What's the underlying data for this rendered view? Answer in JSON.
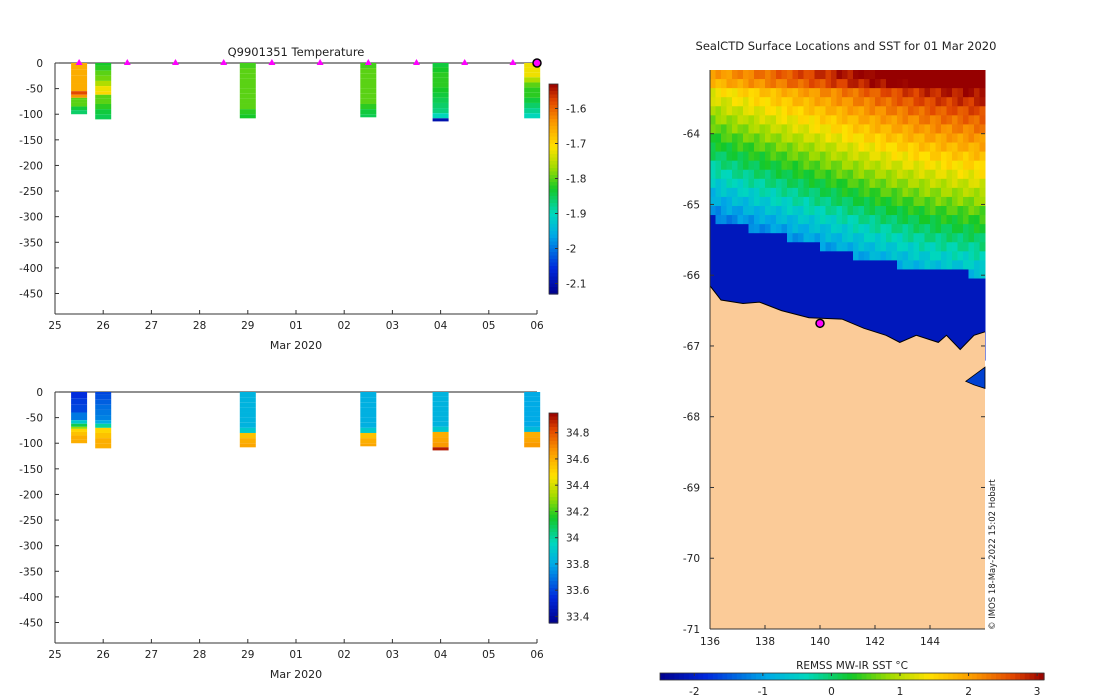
{
  "chart_data": [
    {
      "type": "heatmap",
      "title": "Q9901351  Temperature",
      "xlabel": "Mar 2020",
      "ylabel": "",
      "x_tick_labels": [
        "25",
        "26",
        "27",
        "28",
        "29",
        "01",
        "02",
        "03",
        "04",
        "05",
        "06"
      ],
      "y_ticks": [
        0,
        -50,
        -100,
        -150,
        -200,
        -250,
        -300,
        -350,
        -400,
        -450
      ],
      "ylim": [
        -490,
        0
      ],
      "colorbar": {
        "ticks": [
          -1.6,
          -1.7,
          -1.8,
          -1.9,
          -2,
          -2.1
        ],
        "range": [
          -2.13,
          -1.53
        ]
      },
      "profile_markers_days": [
        0.5,
        1.5,
        2.5,
        3.5,
        4.5,
        5.5,
        6.5,
        7.5,
        8.5,
        9.5
      ],
      "surface_marker_day": 10,
      "profiles": [
        {
          "day": 0.5,
          "depths": [
            -12,
            -25,
            -40,
            -55,
            -62,
            -68,
            -72,
            -78,
            -85,
            -92,
            -100
          ],
          "values": [
            -1.66,
            -1.66,
            -1.66,
            -1.66,
            -1.58,
            -1.64,
            -1.8,
            -1.8,
            -1.8,
            -1.84,
            -1.86
          ]
        },
        {
          "day": 1.0,
          "depths": [
            -5,
            -15,
            -25,
            -35,
            -45,
            -55,
            -62,
            -70,
            -80,
            -90,
            -100,
            -110
          ],
          "values": [
            -1.83,
            -1.82,
            -1.8,
            -1.79,
            -1.76,
            -1.72,
            -1.7,
            -1.8,
            -1.8,
            -1.82,
            -1.84,
            -1.85
          ]
        },
        {
          "day": 4.0,
          "depths": [
            -10,
            -20,
            -30,
            -40,
            -50,
            -60,
            -70,
            -80,
            -90,
            -100,
            -108
          ],
          "values": [
            -1.81,
            -1.8,
            -1.8,
            -1.8,
            -1.8,
            -1.8,
            -1.8,
            -1.8,
            -1.8,
            -1.82,
            -1.83
          ]
        },
        {
          "day": 6.5,
          "depths": [
            -10,
            -20,
            -30,
            -40,
            -50,
            -60,
            -70,
            -80,
            -90,
            -100,
            -106
          ],
          "values": [
            -1.81,
            -1.8,
            -1.8,
            -1.8,
            -1.8,
            -1.8,
            -1.8,
            -1.8,
            -1.82,
            -1.84,
            -1.85
          ]
        },
        {
          "day": 8.0,
          "depths": [
            -8,
            -18,
            -28,
            -38,
            -48,
            -58,
            -68,
            -78,
            -88,
            -98,
            -108,
            -114
          ],
          "values": [
            -1.84,
            -1.83,
            -1.82,
            -1.82,
            -1.82,
            -1.83,
            -1.84,
            -1.85,
            -1.86,
            -1.87,
            -1.9,
            -2.1
          ]
        },
        {
          "day": 9.9,
          "depths": [
            -8,
            -18,
            -28,
            -38,
            -48,
            -58,
            -68,
            -78,
            -88,
            -98,
            -108
          ],
          "values": [
            -1.72,
            -1.72,
            -1.72,
            -1.76,
            -1.8,
            -1.82,
            -1.82,
            -1.84,
            -1.86,
            -1.88,
            -1.9
          ]
        }
      ]
    },
    {
      "type": "heatmap",
      "title": "",
      "xlabel": "Mar 2020",
      "ylabel": "",
      "x_tick_labels": [
        "25",
        "26",
        "27",
        "28",
        "29",
        "01",
        "02",
        "03",
        "04",
        "05",
        "06"
      ],
      "y_ticks": [
        0,
        -50,
        -100,
        -150,
        -200,
        -250,
        -300,
        -350,
        -400,
        -450
      ],
      "ylim": [
        -490,
        0
      ],
      "colorbar": {
        "ticks": [
          34.8,
          34.6,
          34.4,
          34.2,
          34,
          33.8,
          33.6,
          33.4
        ],
        "range": [
          33.35,
          34.95
        ]
      },
      "profiles": [
        {
          "day": 0.5,
          "depths": [
            -12,
            -25,
            -40,
            -55,
            -62,
            -68,
            -72,
            -78,
            -85,
            -92,
            -100
          ],
          "values": [
            33.55,
            33.58,
            33.6,
            33.7,
            33.9,
            34.1,
            34.3,
            34.5,
            34.55,
            34.6,
            34.6
          ]
        },
        {
          "day": 1.0,
          "depths": [
            -5,
            -15,
            -25,
            -35,
            -45,
            -55,
            -62,
            -70,
            -80,
            -90,
            -100,
            -110
          ],
          "values": [
            33.6,
            33.62,
            33.65,
            33.68,
            33.7,
            33.72,
            33.8,
            34.0,
            34.5,
            34.55,
            34.6,
            34.6
          ]
        },
        {
          "day": 4.0,
          "depths": [
            -10,
            -20,
            -30,
            -40,
            -50,
            -60,
            -70,
            -80,
            -90,
            -100,
            -108
          ],
          "values": [
            33.83,
            33.83,
            33.83,
            33.83,
            33.83,
            33.83,
            33.83,
            33.9,
            34.55,
            34.6,
            34.62
          ]
        },
        {
          "day": 6.5,
          "depths": [
            -10,
            -20,
            -30,
            -40,
            -50,
            -60,
            -70,
            -80,
            -90,
            -100,
            -106
          ],
          "values": [
            33.82,
            33.82,
            33.82,
            33.82,
            33.82,
            33.82,
            33.82,
            33.9,
            34.55,
            34.6,
            34.62
          ]
        },
        {
          "day": 8.0,
          "depths": [
            -8,
            -18,
            -28,
            -38,
            -48,
            -58,
            -68,
            -78,
            -88,
            -98,
            -108,
            -114
          ],
          "values": [
            33.83,
            33.83,
            33.83,
            33.83,
            33.83,
            33.83,
            33.83,
            33.9,
            34.6,
            34.62,
            34.65,
            34.9
          ]
        },
        {
          "day": 9.9,
          "depths": [
            -8,
            -18,
            -28,
            -38,
            -48,
            -58,
            -68,
            -78,
            -88,
            -98,
            -108
          ],
          "values": [
            33.8,
            33.8,
            33.8,
            33.8,
            33.8,
            33.8,
            33.8,
            33.85,
            34.6,
            34.62,
            34.65
          ]
        }
      ]
    },
    {
      "type": "heatmap",
      "title": "SealCTD Surface Locations and SST for 01 Mar 2020",
      "xlabel": "",
      "ylabel": "",
      "x_ticks": [
        136,
        138,
        140,
        142,
        144
      ],
      "y_ticks": [
        -64,
        -65,
        -66,
        -67,
        -68,
        -69,
        -70,
        -71
      ],
      "xlim": [
        136,
        146
      ],
      "ylim": [
        -71,
        -63.1
      ],
      "colorbar": {
        "label": "REMSS MW-IR SST °C",
        "ticks": [
          -2,
          -1,
          0,
          1,
          2,
          3
        ],
        "range": [
          -2.5,
          3.1
        ]
      },
      "credit": "© IMOS 18-May-2022 15:02 Hobart",
      "surface_location": {
        "lon": 140.0,
        "lat": -66.68
      },
      "ice_edge_lat": [
        [
          136,
          -65.2
        ],
        [
          138,
          -65.4
        ],
        [
          140,
          -65.6
        ],
        [
          142,
          -65.8
        ],
        [
          144,
          -65.95
        ],
        [
          146,
          -66.0
        ]
      ],
      "coast": [
        [
          136,
          -66.15
        ],
        [
          136.4,
          -66.35
        ],
        [
          137.2,
          -66.4
        ],
        [
          137.8,
          -66.38
        ],
        [
          138.6,
          -66.5
        ],
        [
          139.6,
          -66.6
        ],
        [
          140.8,
          -66.62
        ],
        [
          141.6,
          -66.75
        ],
        [
          142.4,
          -66.85
        ],
        [
          142.9,
          -66.95
        ],
        [
          143.5,
          -66.85
        ],
        [
          144.3,
          -66.95
        ],
        [
          144.6,
          -66.85
        ],
        [
          145.1,
          -67.05
        ],
        [
          145.6,
          -66.85
        ],
        [
          146,
          -66.8
        ]
      ]
    }
  ]
}
